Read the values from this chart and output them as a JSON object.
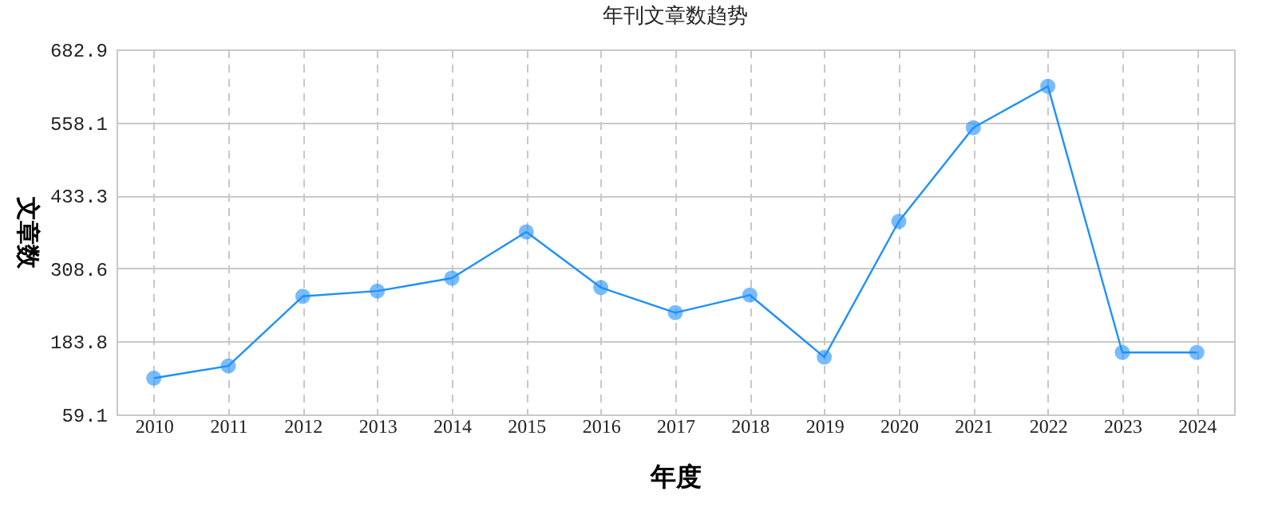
{
  "chart_data": {
    "type": "line",
    "title": "年刊文章数趋势",
    "xlabel": "年度",
    "ylabel": "文章数",
    "categories": [
      "2010",
      "2011",
      "2012",
      "2013",
      "2014",
      "2015",
      "2016",
      "2017",
      "2018",
      "2019",
      "2020",
      "2021",
      "2022",
      "2023",
      "2024"
    ],
    "series": [
      {
        "color": "#1e90ff",
        "values": [
          121,
          142,
          261,
          270,
          292,
          371,
          276,
          233,
          263,
          157,
          389,
          549,
          620,
          165,
          165
        ]
      }
    ],
    "ylim": [
      59.1,
      682.9
    ],
    "yticks": [
      59.1,
      183.8,
      308.6,
      433.3,
      558.1,
      682.9
    ],
    "grid": true,
    "marker": "circle",
    "line_style": "solid"
  }
}
